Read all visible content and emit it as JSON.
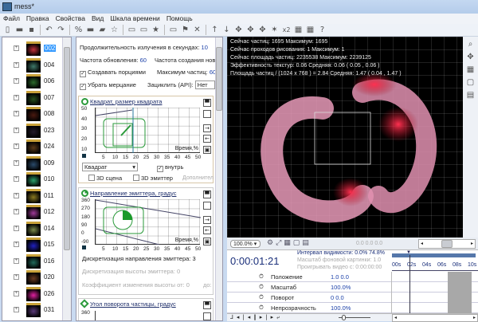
{
  "window": {
    "title": "mess*"
  },
  "menu": [
    "Файл",
    "Правка",
    "Свойства",
    "Вид",
    "Шкала времени",
    "Помощь"
  ],
  "tree": {
    "items": [
      {
        "label": "002",
        "color": "#c0303a",
        "selected": true
      },
      {
        "label": "004",
        "color": "#3f7a6a"
      },
      {
        "label": "006",
        "color": "#2b6a2b"
      },
      {
        "label": "007",
        "color": "#264f1c"
      },
      {
        "label": "008",
        "color": "#4a1a10"
      },
      {
        "label": "023",
        "color": "#221a2a"
      },
      {
        "label": "024",
        "color": "#5a3a18"
      },
      {
        "label": "009",
        "color": "#2a4a6a"
      },
      {
        "label": "010",
        "color": "#2aa06a"
      },
      {
        "label": "011",
        "color": "#8a7a20"
      },
      {
        "label": "012",
        "color": "#a03a9a"
      },
      {
        "label": "014",
        "color": "#7a8a4a"
      },
      {
        "label": "015",
        "color": "#2020c0"
      },
      {
        "label": "016",
        "color": "#206a5a"
      },
      {
        "label": "020",
        "color": "#6a3a20"
      },
      {
        "label": "026",
        "color": "#e020a0"
      },
      {
        "label": "031",
        "color": "#5a3a7a"
      }
    ]
  },
  "props": {
    "duration_label": "Продолжительность излучения в секундах:",
    "duration": "10",
    "refresh_label": "Частота обновления:",
    "refresh": "60",
    "creation_label": "Частота создания новы",
    "portions_label": "Создавать порциями",
    "max_label": "Максимум частиц:",
    "max": "600",
    "flicker_label": "Убрать мерцание",
    "loop_label": "Зациклить (API):",
    "loop": "Нет"
  },
  "card1": {
    "title": "Квадрат, размер квадрата",
    "yticks": [
      "50",
      "40",
      "30",
      "20",
      "10"
    ],
    "xticks": [
      "5",
      "10",
      "15",
      "20",
      "25",
      "30",
      "35",
      "40",
      "45",
      "50"
    ],
    "axis": "Время,%",
    "shape": "Квадрат",
    "inside": "внутрь",
    "scene3d": "3D сцена",
    "emitter3d": "3D эмиттер",
    "more": "Дополнител"
  },
  "card2": {
    "title": "Направление эмиттера, градус",
    "yticks": [
      "360",
      "270",
      "180",
      "90",
      "0",
      "-90"
    ],
    "xticks": [
      "5",
      "10",
      "15",
      "20",
      "25",
      "30",
      "35",
      "40",
      "45",
      "50"
    ],
    "axis": "Время,%",
    "disc_dir": "Дискретизация направления эмиттера: 3",
    "disc_h": "Дискретизация высоты эмиттера: 0",
    "coef": "Коэффициент изменения высоты от: 0",
    "to": "до:"
  },
  "card3": {
    "title": "Угол поворота частицы, градус",
    "ytick": "360"
  },
  "stats": [
    "Сейчас частиц: 1695    Максимум: 1695",
    "Сейчас проходов рисования: 1    Максимум: 1",
    "Сейчас площадь частиц: 2235538    Максимум: 2239125",
    "Эффективность текстур: 0.06    Средняя: 0.06  ( 0.05 ,  0.06 )",
    "Площадь частиц / (1024 x 768 ) = 2.84    Средняя: 1.47  ( 0.04 ,  1.47 )"
  ],
  "viewbar": {
    "zoom": "100.0%",
    "coords": "0.0  0.0  0.0"
  },
  "timeline": {
    "time": "0:00:01:21",
    "visibility": "Интервал видимости: 0.0%  74.8%",
    "bgscale": "Масштаб фоновой картинки: 1.0",
    "video": "Проигрывать видео с: 0:00:00:00",
    "ruler": [
      "00s",
      "02s",
      "04s",
      "06s",
      "08s",
      "10s"
    ],
    "tracks": [
      {
        "label": "Положение",
        "value": "1.0  0.0"
      },
      {
        "label": "Масштаб",
        "value": "100.0%"
      },
      {
        "label": "Поворот",
        "value": "0  0.0"
      },
      {
        "label": "Непрозрачность",
        "value": "100.0%"
      }
    ]
  },
  "colors": {
    "accent": "#3399ff",
    "graph": "#2a9a3a",
    "viewport": "#000000"
  }
}
